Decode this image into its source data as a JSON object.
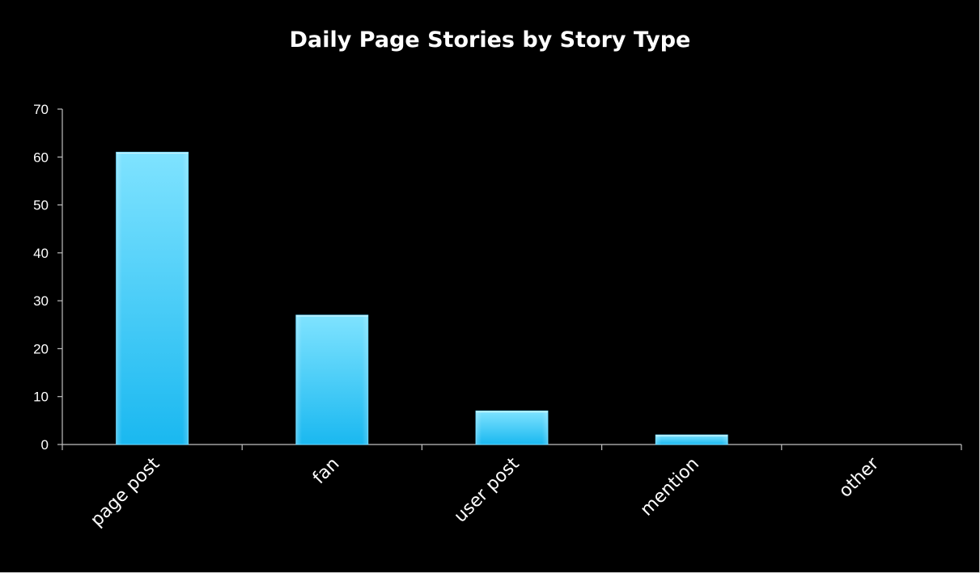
{
  "chart_data": {
    "type": "bar",
    "title": "Daily Page Stories by Story Type",
    "categories": [
      "page post",
      "fan",
      "user post",
      "mention",
      "other"
    ],
    "values": [
      61,
      27,
      7,
      2,
      0
    ],
    "ylim": [
      0,
      70
    ],
    "yticks": [
      "0",
      "10",
      "20",
      "30",
      "40",
      "50",
      "60",
      "70"
    ],
    "xlabel": "",
    "ylabel": "",
    "grid": false,
    "legend": "none",
    "colors": {
      "background": "#000000",
      "bar_top": "#7fe3ff",
      "bar_bottom": "#1ab8f0",
      "axis": "#bfbfbf",
      "text": "#ffffff"
    }
  }
}
